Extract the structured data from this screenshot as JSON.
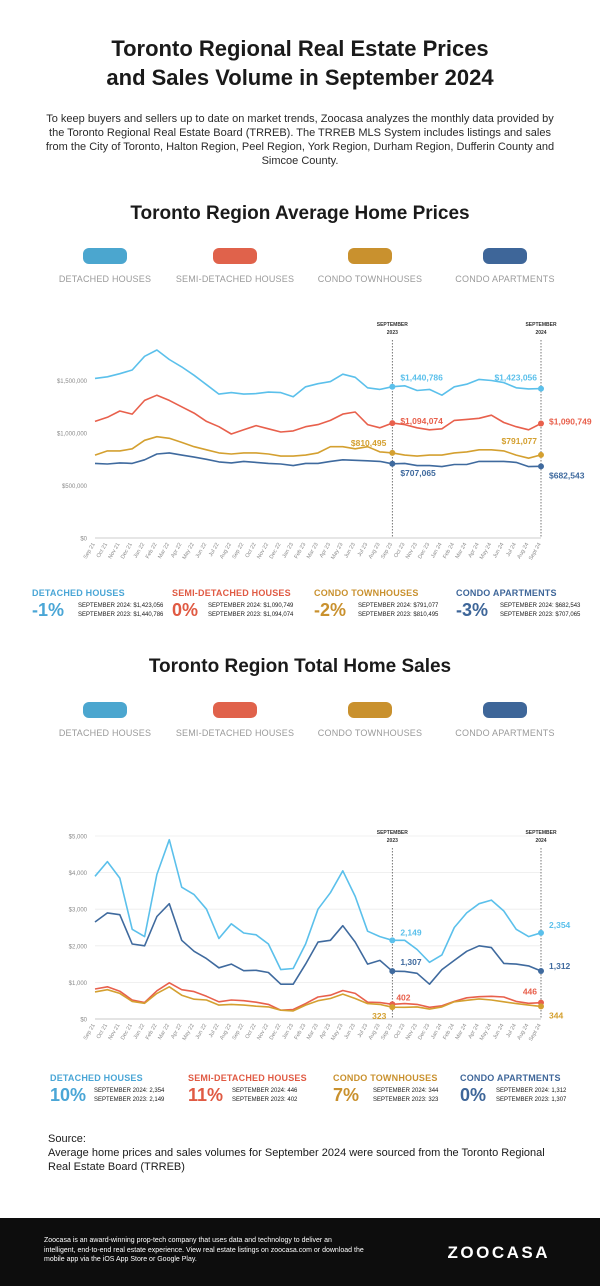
{
  "header": {
    "title_line1": "Toronto Regional Real Estate Prices",
    "title_line2": "and Sales Volume in September 2024",
    "intro": "To keep buyers and sellers up to date on market trends, Zoocasa analyzes the monthly data provided by the Toronto Regional Real Estate Board (TRREB). The TRREB MLS System includes listings and sales from the City of Toronto, Halton Region, Peel Region, York Region, Durham Region, Dufferin County and Simcoe County."
  },
  "colors": {
    "detached": "#5bc0eb",
    "semi": "#e8604c",
    "condo_town": "#d4a030",
    "condo_apt": "#3f6a9e"
  },
  "legend": [
    {
      "label": "DETACHED HOUSES",
      "pill": "#4ba6cf"
    },
    {
      "label": "SEMI-DETACHED HOUSES",
      "pill": "#e0624b"
    },
    {
      "label": "CONDO TOWNHOUSES",
      "pill": "#c9912e"
    },
    {
      "label": "CONDO APARTMENTS",
      "pill": "#3e6699"
    }
  ],
  "chart_data": [
    {
      "type": "line",
      "title": "Toronto Region Average Home Prices",
      "x": [
        "Sep 21",
        "Oct 21",
        "Nov 21",
        "Dec 21",
        "Jan 22",
        "Feb 22",
        "Mar 22",
        "Apr 22",
        "May 22",
        "Jun 22",
        "Jul 22",
        "Aug 22",
        "Sep 22",
        "Oct 22",
        "Nov 22",
        "Dec 22",
        "Jan 23",
        "Feb 23",
        "Mar 23",
        "Apr 23",
        "May 23",
        "Jun 23",
        "Jul 23",
        "Aug 23",
        "Sep 23",
        "Oct 23",
        "Nov 23",
        "Dec 23",
        "Jan 24",
        "Feb 24",
        "Mar 24",
        "Apr 24",
        "May 24",
        "Jun 24",
        "Jul 24",
        "Aug 24",
        "Sept 24"
      ],
      "yticks": [
        "$0",
        "$500,000",
        "$1,000,000",
        "$1,500,000"
      ],
      "ytick_values": [
        0,
        500000,
        1000000,
        1500000
      ],
      "ylim": [
        0,
        2000000
      ],
      "markers": [
        {
          "index": 24,
          "label_line1": "SEPTEMBER",
          "label_line2": "2023"
        },
        {
          "index": 36,
          "label_line1": "SEPTEMBER",
          "label_line2": "2024"
        }
      ],
      "series": [
        {
          "name": "DETACHED HOUSES",
          "values": [
            1520000,
            1535000,
            1565000,
            1600000,
            1730000,
            1790000,
            1700000,
            1630000,
            1550000,
            1460000,
            1370000,
            1385000,
            1370000,
            1375000,
            1390000,
            1385000,
            1345000,
            1440000,
            1470000,
            1490000,
            1560000,
            1530000,
            1430000,
            1415000,
            1440786,
            1450000,
            1405000,
            1415000,
            1360000,
            1440000,
            1465000,
            1510000,
            1500000,
            1480000,
            1430000,
            1420000,
            1423056
          ],
          "labels": [
            {
              "index": 24,
              "text": "$1,440,786"
            },
            {
              "index": 36,
              "text": "$1,423,056"
            }
          ]
        },
        {
          "name": "SEMI-DETACHED HOUSES",
          "values": [
            1110000,
            1150000,
            1210000,
            1180000,
            1310000,
            1360000,
            1310000,
            1250000,
            1190000,
            1110000,
            1060000,
            990000,
            1030000,
            1070000,
            1040000,
            1010000,
            1020000,
            1060000,
            1080000,
            1120000,
            1180000,
            1200000,
            1080000,
            1050000,
            1094074,
            1080000,
            1050000,
            1030000,
            1040000,
            1120000,
            1130000,
            1140000,
            1170000,
            1100000,
            1060000,
            1030000,
            1090749
          ],
          "labels": [
            {
              "index": 24,
              "text": "$1,094,074"
            },
            {
              "index": 36,
              "text": "$1,090,749"
            }
          ]
        },
        {
          "name": "CONDO TOWNHOUSES",
          "values": [
            790000,
            830000,
            830000,
            850000,
            930000,
            965000,
            950000,
            910000,
            870000,
            840000,
            810000,
            800000,
            810000,
            810000,
            800000,
            780000,
            780000,
            790000,
            810000,
            870000,
            870000,
            850000,
            870000,
            820000,
            810495,
            790000,
            780000,
            790000,
            790000,
            810000,
            820000,
            840000,
            840000,
            830000,
            790000,
            760000,
            791077
          ],
          "labels": [
            {
              "index": 24,
              "text": "$810,495"
            },
            {
              "index": 36,
              "text": "$791,077"
            }
          ]
        },
        {
          "name": "CONDO APARTMENTS",
          "values": [
            710000,
            705000,
            715000,
            710000,
            745000,
            800000,
            810000,
            790000,
            770000,
            750000,
            725000,
            715000,
            730000,
            720000,
            710000,
            705000,
            690000,
            710000,
            710000,
            730000,
            745000,
            740000,
            735000,
            730000,
            707065,
            710000,
            690000,
            690000,
            680000,
            700000,
            700000,
            730000,
            730000,
            730000,
            720000,
            680000,
            682543
          ],
          "labels": [
            {
              "index": 24,
              "text": "$707,065"
            },
            {
              "index": 36,
              "text": "$682,543"
            }
          ]
        }
      ]
    },
    {
      "type": "line",
      "title": "Toronto Region Total Home Sales",
      "x": [
        "Sep 21",
        "Oct 21",
        "Nov 21",
        "Dec 21",
        "Jan 22",
        "Feb 22",
        "Mar 22",
        "Apr 22",
        "May 22",
        "Jun 22",
        "Jul 22",
        "Aug 22",
        "Sep 22",
        "Oct 22",
        "Nov 22",
        "Dec 22",
        "Jan 23",
        "Feb 23",
        "Mar 23",
        "Apr 23",
        "May 23",
        "Jun 23",
        "Jul 23",
        "Aug 23",
        "Sep 23",
        "Oct 23",
        "Nov 23",
        "Dec 23",
        "Jan 24",
        "Feb 24",
        "Mar 24",
        "Apr 24",
        "May 24",
        "Jun 24",
        "Jul 24",
        "Aug 24",
        "Sept 24"
      ],
      "yticks": [
        "$0",
        "$1,000",
        "$2,000",
        "$3,000",
        "$4,000",
        "$5,000"
      ],
      "ytick_values": [
        0,
        1000,
        2000,
        3000,
        4000,
        5000
      ],
      "ylim": [
        0,
        5000
      ],
      "markers": [
        {
          "index": 24,
          "label_line1": "SEPTEMBER",
          "label_line2": "2023"
        },
        {
          "index": 36,
          "label_line1": "SEPTEMBER",
          "label_line2": "2024"
        }
      ],
      "series": [
        {
          "name": "DETACHED HOUSES",
          "values": [
            3900,
            4300,
            3850,
            2450,
            2250,
            3950,
            4900,
            3600,
            3400,
            3000,
            2200,
            2600,
            2350,
            2300,
            2050,
            1350,
            1380,
            2050,
            3000,
            3450,
            4050,
            3350,
            2400,
            2250,
            2149,
            2150,
            1900,
            1550,
            1750,
            2500,
            2900,
            3150,
            3250,
            2950,
            2450,
            2250,
            2354
          ],
          "labels": [
            {
              "index": 24,
              "text": "2,149"
            },
            {
              "index": 36,
              "text": "2,354"
            }
          ]
        },
        {
          "name": "SEMI-DETACHED HOUSES",
          "values": [
            820,
            880,
            760,
            520,
            450,
            770,
            990,
            800,
            750,
            620,
            470,
            520,
            500,
            460,
            400,
            240,
            260,
            420,
            600,
            650,
            780,
            700,
            460,
            450,
            402,
            420,
            400,
            320,
            360,
            480,
            580,
            610,
            620,
            600,
            480,
            430,
            446
          ],
          "labels": [
            {
              "index": 24,
              "text": "402"
            },
            {
              "index": 36,
              "text": "446"
            }
          ]
        },
        {
          "name": "CONDO TOWNHOUSES",
          "values": [
            740,
            800,
            700,
            480,
            430,
            700,
            880,
            650,
            540,
            520,
            380,
            400,
            380,
            350,
            330,
            240,
            220,
            380,
            500,
            560,
            680,
            560,
            420,
            400,
            323,
            320,
            330,
            270,
            330,
            470,
            510,
            550,
            520,
            470,
            420,
            380,
            344
          ],
          "labels": [
            {
              "index": 24,
              "text": "323"
            },
            {
              "index": 36,
              "text": "344"
            }
          ]
        },
        {
          "name": "CONDO APARTMENTS",
          "values": [
            2650,
            2900,
            2850,
            2050,
            2000,
            2800,
            3150,
            2150,
            1850,
            1650,
            1400,
            1500,
            1320,
            1330,
            1270,
            950,
            950,
            1500,
            2100,
            2150,
            2550,
            2100,
            1500,
            1600,
            1307,
            1300,
            1250,
            950,
            1350,
            1600,
            1850,
            2000,
            1950,
            1520,
            1500,
            1450,
            1312
          ],
          "labels": [
            {
              "index": 24,
              "text": "1,307"
            },
            {
              "index": 36,
              "text": "1,312"
            }
          ]
        }
      ]
    }
  ],
  "price_stats": [
    {
      "name": "DETACHED HOUSES",
      "pct": "-1%",
      "row1": "SEPTEMBER 2024:  $1,423,056",
      "row2": "SEPTEMBER 2023:  $1,440,786"
    },
    {
      "name": "SEMI-DETACHED HOUSES",
      "pct": "0%",
      "row1": "SEPTEMBER 2024:  $1,090,749",
      "row2": "SEPTEMBER 2023:  $1,094,074"
    },
    {
      "name": "CONDO TOWNHOUSES",
      "pct": "-2%",
      "row1": "SEPTEMBER 2024:  $791,077",
      "row2": "SEPTEMBER 2023:  $810,495"
    },
    {
      "name": "CONDO APARTMENTS",
      "pct": "-3%",
      "row1": "SEPTEMBER 2024:  $682,543",
      "row2": "SEPTEMBER 2023:  $707,065"
    }
  ],
  "sales_stats": [
    {
      "name": "DETACHED HOUSES",
      "pct": "10%",
      "row1": "SEPTEMBER 2024:  2,354",
      "row2": "SEPTEMBER 2023:  2,149"
    },
    {
      "name": "SEMI-DETACHED HOUSES",
      "pct": "11%",
      "row1": "SEPTEMBER 2024:  446",
      "row2": "SEPTEMBER 2023:  402"
    },
    {
      "name": "CONDO TOWNHOUSES",
      "pct": "7%",
      "row1": "SEPTEMBER 2024:  344",
      "row2": "SEPTEMBER 2023:  323"
    },
    {
      "name": "CONDO APARTMENTS",
      "pct": "0%",
      "row1": "SEPTEMBER 2024:  1,312",
      "row2": "SEPTEMBER 2023:  1,307"
    }
  ],
  "source": {
    "heading": "Source:",
    "text": "Average home prices and sales volumes for September 2024 were sourced from the Toronto Regional Real Estate Board (TRREB)"
  },
  "footer": {
    "text": "Zoocasa is an award-winning prop-tech company that uses data and technology to deliver an intelligent, end-to-end real estate experience. View real estate listings on zoocasa.com or download the mobile app via the iOS App Store or Google Play.",
    "logo": "ZOOCASA"
  }
}
